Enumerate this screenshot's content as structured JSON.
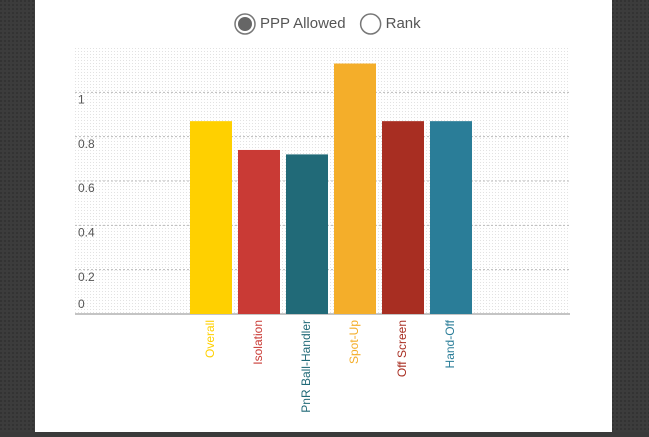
{
  "options": [
    {
      "label": "PPP Allowed",
      "selected": true
    },
    {
      "label": "Rank",
      "selected": false
    }
  ],
  "chart_data": {
    "type": "bar",
    "categories": [
      "Overall",
      "Isolation",
      "PnR Ball-Handler",
      "Spot-Up",
      "Off Screen",
      "Hand-Off"
    ],
    "values": [
      0.87,
      0.74,
      0.72,
      1.13,
      0.87,
      0.87
    ],
    "colors": [
      "#ffd000",
      "#c93a35",
      "#216a78",
      "#f4ae2a",
      "#a82e22",
      "#2a7d98"
    ],
    "ylim": [
      0,
      1.2
    ],
    "yticks": [
      0,
      0.2,
      0.4,
      0.6,
      0.8,
      1
    ],
    "grid": true
  }
}
